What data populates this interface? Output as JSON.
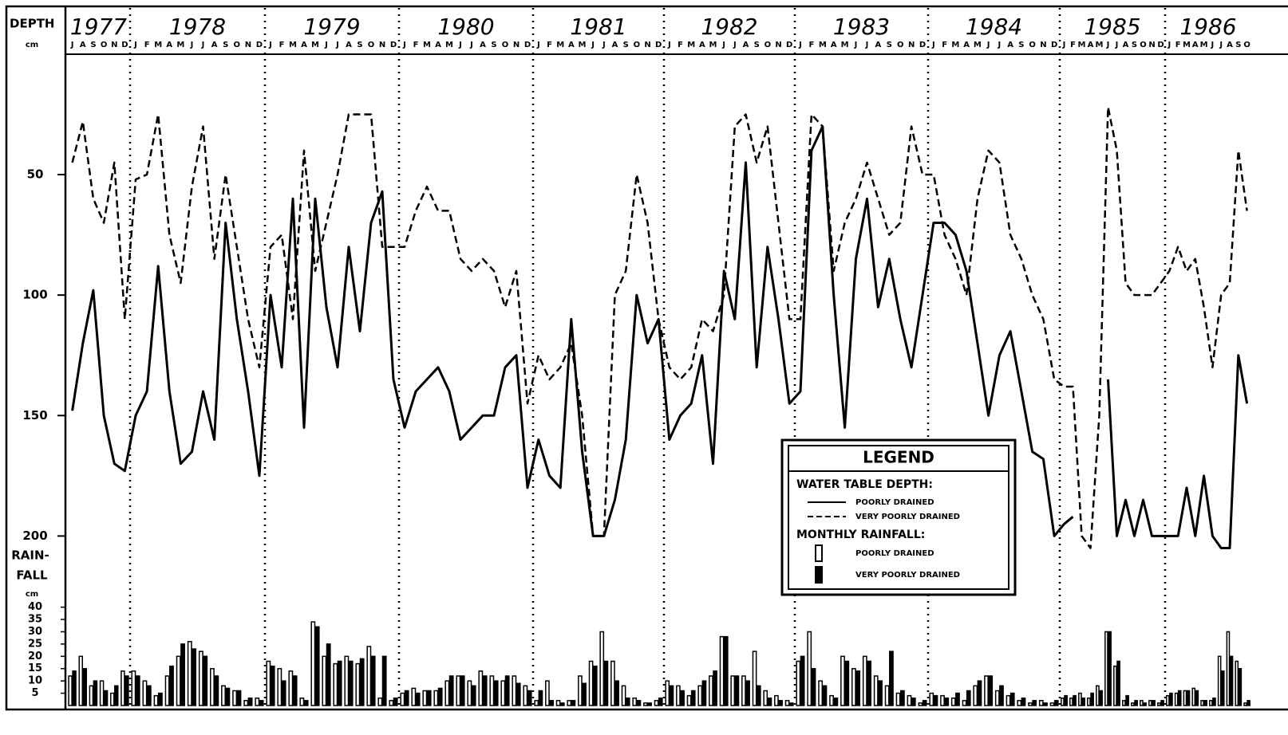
{
  "chart_data": {
    "type": "line_bar",
    "y_label": "DEPTH",
    "y_unit": "cm",
    "y2_label": [
      "RAIN-",
      "FALL"
    ],
    "y2_unit": "cm",
    "years": [
      "1977",
      "1978",
      "1979",
      "1980",
      "1981",
      "1982",
      "1983",
      "1984",
      "1985",
      "1986"
    ],
    "categories": [
      "J",
      "A",
      "S",
      "O",
      "N",
      "D",
      "J",
      "F",
      "M",
      "A",
      "M",
      "J",
      "J",
      "A",
      "S",
      "O",
      "N",
      "D",
      "J",
      "F",
      "M",
      "A",
      "M",
      "J",
      "J",
      "A",
      "S",
      "O",
      "N",
      "D",
      "J",
      "F",
      "M",
      "A",
      "M",
      "J",
      "J",
      "A",
      "S",
      "O",
      "N",
      "D",
      "J",
      "F",
      "M",
      "A",
      "M",
      "J",
      "J",
      "A",
      "S",
      "O",
      "N",
      "D",
      "J",
      "F",
      "M",
      "A",
      "M",
      "J",
      "J",
      "A",
      "S",
      "O",
      "N",
      "D",
      "J",
      "F",
      "M",
      "A",
      "M",
      "J",
      "J",
      "A",
      "S",
      "O",
      "N",
      "D",
      "J",
      "F",
      "M",
      "A",
      "M",
      "J",
      "J",
      "A",
      "S",
      "O",
      "N",
      "D",
      "J",
      "F",
      "M",
      "A",
      "M",
      "J",
      "J",
      "A",
      "S",
      "O",
      "N",
      "D",
      "J",
      "F",
      "M",
      "A",
      "M",
      "J",
      "J",
      "A",
      "S",
      "O"
    ],
    "ylim": [
      4,
      272
    ],
    "y_inverted": true,
    "yticks": [
      50,
      100,
      150,
      200
    ],
    "y2lim": [
      0,
      261
    ],
    "y2ticks": [
      5,
      10,
      15,
      20,
      25,
      30,
      35,
      40
    ],
    "legend_title": "LEGEND",
    "legend_groups": [
      "WATER TABLE DEPTH:",
      "MONTHLY RAINFALL:"
    ],
    "series": [
      {
        "name": "POORLY DRAINED",
        "kind": "line",
        "dashed": false,
        "color": "#000000",
        "values": [
          148,
          120,
          98,
          150,
          170,
          173,
          150,
          140,
          88,
          140,
          170,
          165,
          140,
          160,
          70,
          110,
          140,
          175,
          100,
          130,
          60,
          155,
          60,
          105,
          130,
          80,
          115,
          70,
          57,
          135,
          155,
          140,
          135,
          130,
          140,
          160,
          155,
          150,
          150,
          130,
          125,
          180,
          160,
          175,
          180,
          110,
          165,
          200,
          200,
          185,
          160,
          100,
          120,
          110,
          160,
          150,
          145,
          125,
          170,
          90,
          110,
          45,
          130,
          80,
          110,
          145,
          140,
          40,
          30,
          100,
          155,
          85,
          60,
          105,
          85,
          110,
          130,
          100,
          70,
          70,
          75,
          90,
          120,
          150,
          125,
          115,
          140,
          165,
          168,
          200,
          195,
          192,
          null,
          null,
          null,
          135,
          200,
          185,
          200,
          185,
          200,
          200,
          200,
          200,
          180,
          200,
          175,
          200,
          205,
          205,
          125,
          145
        ]
      },
      {
        "name": "VERY POORLY DRAINED",
        "kind": "line",
        "dashed": true,
        "color": "#000000",
        "values": [
          45,
          28,
          60,
          70,
          45,
          110,
          52,
          50,
          25,
          75,
          95,
          55,
          30,
          85,
          50,
          80,
          110,
          130,
          80,
          75,
          110,
          40,
          90,
          70,
          50,
          25,
          25,
          25,
          80,
          80,
          80,
          65,
          55,
          65,
          65,
          85,
          90,
          85,
          90,
          105,
          90,
          145,
          125,
          135,
          130,
          120,
          150,
          200,
          200,
          100,
          90,
          50,
          70,
          110,
          130,
          135,
          130,
          110,
          115,
          100,
          30,
          25,
          45,
          30,
          70,
          110,
          110,
          25,
          30,
          90,
          70,
          60,
          45,
          60,
          75,
          70,
          30,
          50,
          50,
          75,
          85,
          100,
          60,
          40,
          45,
          75,
          85,
          100,
          110,
          135,
          138,
          138,
          200,
          205,
          150,
          22,
          40,
          95,
          100,
          100,
          100,
          95,
          90,
          80,
          90,
          85,
          105,
          130,
          100,
          95,
          40,
          65
        ]
      },
      {
        "name": "POORLY DRAINED",
        "kind": "bar",
        "hollow": true,
        "axis": "y2",
        "color": "#000000",
        "values": [
          12,
          20,
          8,
          10,
          5,
          14,
          14,
          10,
          4,
          12,
          20,
          26,
          22,
          15,
          8,
          6,
          2,
          3,
          18,
          15,
          14,
          3,
          34,
          20,
          17,
          20,
          17,
          24,
          3,
          2,
          5,
          7,
          6,
          6,
          10,
          12,
          10,
          14,
          12,
          10,
          12,
          8,
          2,
          10,
          2,
          2,
          12,
          18,
          30,
          18,
          8,
          3,
          1,
          2,
          10,
          8,
          4,
          8,
          12,
          28,
          12,
          12,
          22,
          6,
          4,
          2,
          18,
          30,
          10,
          4,
          20,
          15,
          20,
          12,
          8,
          5,
          4,
          1,
          5,
          4,
          3,
          2,
          8,
          12,
          6,
          4,
          2,
          1,
          2,
          1,
          3,
          3,
          5,
          3,
          8,
          30,
          16,
          2,
          1,
          2,
          2,
          1,
          4,
          5,
          6,
          7,
          2,
          2,
          20,
          30,
          18,
          1
        ]
      },
      {
        "name": "VERY POORLY DRAINED",
        "kind": "bar",
        "hollow": false,
        "axis": "y2",
        "color": "#000000",
        "values": [
          14,
          15,
          10,
          6,
          8,
          12,
          12,
          8,
          5,
          16,
          25,
          23,
          20,
          12,
          7,
          6,
          3,
          2,
          16,
          10,
          12,
          2,
          32,
          25,
          18,
          18,
          19,
          20,
          20,
          3,
          6,
          5,
          6,
          7,
          12,
          12,
          8,
          12,
          10,
          12,
          9,
          6,
          6,
          2,
          1,
          2,
          9,
          16,
          18,
          10,
          3,
          2,
          1,
          3,
          8,
          6,
          6,
          10,
          14,
          28,
          12,
          10,
          8,
          3,
          2,
          1,
          20,
          15,
          8,
          3,
          18,
          14,
          18,
          10,
          22,
          6,
          3,
          2,
          4,
          3,
          5,
          6,
          10,
          12,
          8,
          5,
          3,
          2,
          1,
          2,
          4,
          4,
          3,
          5,
          6,
          30,
          18,
          4,
          2,
          1,
          2,
          2,
          5,
          6,
          6,
          6,
          2,
          3,
          14,
          20,
          15,
          2
        ]
      }
    ]
  }
}
